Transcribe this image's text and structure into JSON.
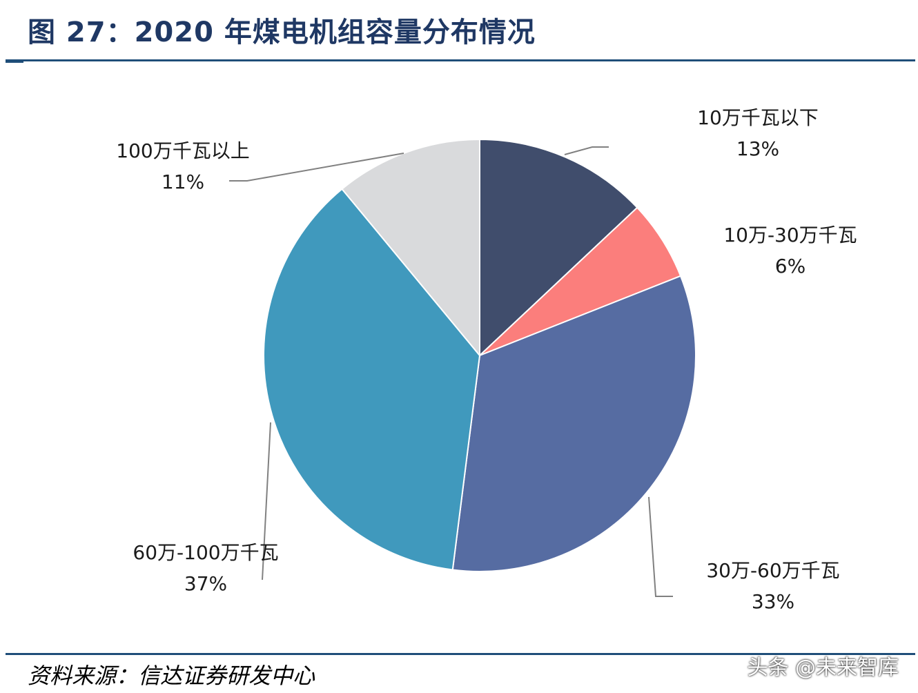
{
  "header": {
    "title": "图 27：2020 年煤电机组容量分布情况"
  },
  "footer": {
    "source": "资料来源：信达证券研发中心",
    "watermark": "头条 @未来智库"
  },
  "chart_data": {
    "type": "pie",
    "title": "图 27：2020 年煤电机组容量分布情况",
    "start_angle_deg": 0,
    "direction": "clockwise",
    "slices": [
      {
        "label": "10万千瓦以下",
        "value": 13,
        "percent_label": "13%",
        "color": "#404d6c"
      },
      {
        "label": "10万-30万千瓦",
        "value": 6,
        "percent_label": "6%",
        "color": "#fb7e7c"
      },
      {
        "label": "30万-60万千瓦",
        "value": 33,
        "percent_label": "33%",
        "color": "#566ca2"
      },
      {
        "label": "60万-100万千瓦",
        "value": 37,
        "percent_label": "37%",
        "color": "#4099bd"
      },
      {
        "label": "100万千瓦以上",
        "value": 11,
        "percent_label": "11%",
        "color": "#d9dadc"
      }
    ]
  }
}
